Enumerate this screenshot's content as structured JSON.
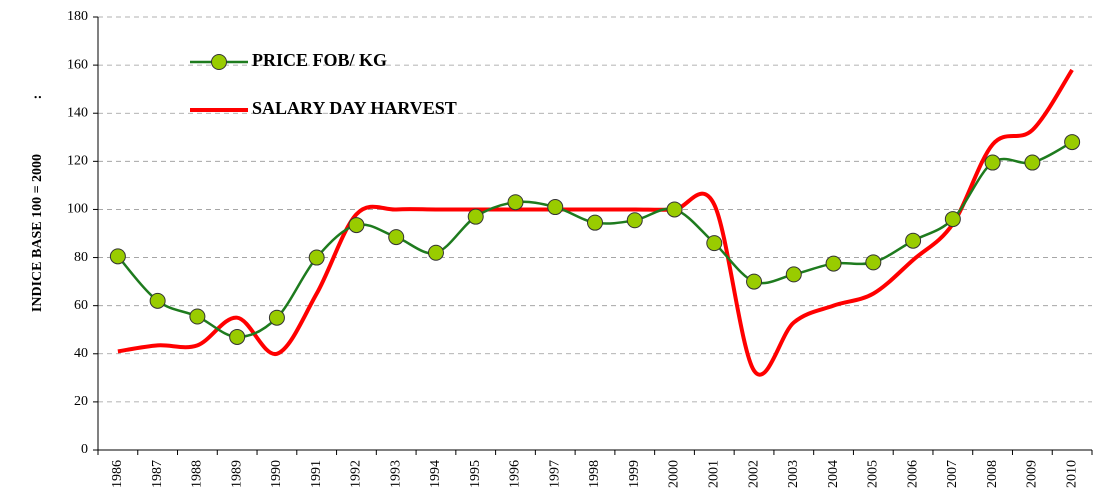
{
  "chart_data": {
    "type": "line",
    "y_label": "INDICE BASE 100 = 2000",
    "annotation": ":",
    "categories": [
      "1986",
      "1987",
      "1988",
      "1989",
      "1990",
      "1991",
      "1992",
      "1993",
      "1994",
      "1995",
      "1996",
      "1997",
      "1998",
      "1999",
      "2000",
      "2001",
      "2002",
      "2003",
      "2004",
      "2005",
      "2006",
      "2007",
      "2008",
      "2009",
      "2010"
    ],
    "series": [
      {
        "name": "PRICE FOB/ KG",
        "color": "#1e7b1e",
        "marker_color": "#99cc00",
        "values": [
          80.5,
          62,
          55.5,
          47,
          55,
          80,
          93.5,
          88.5,
          82,
          97,
          103,
          101,
          94.5,
          95.5,
          100,
          86,
          70,
          73,
          77.5,
          78,
          87,
          96,
          119.5,
          119.5,
          128
        ]
      },
      {
        "name": "SALARY DAY HARVEST",
        "color": "#ff0000",
        "values": [
          41,
          43.5,
          43.5,
          55,
          40,
          65,
          98,
          100,
          100,
          100,
          100,
          100,
          100,
          100,
          100,
          102,
          33,
          53,
          60,
          65,
          79,
          94,
          127,
          133,
          158
        ]
      }
    ],
    "ylim": [
      0,
      180
    ],
    "yticks": [
      0,
      20,
      40,
      60,
      80,
      100,
      120,
      140,
      160,
      180
    ],
    "grid": true
  }
}
